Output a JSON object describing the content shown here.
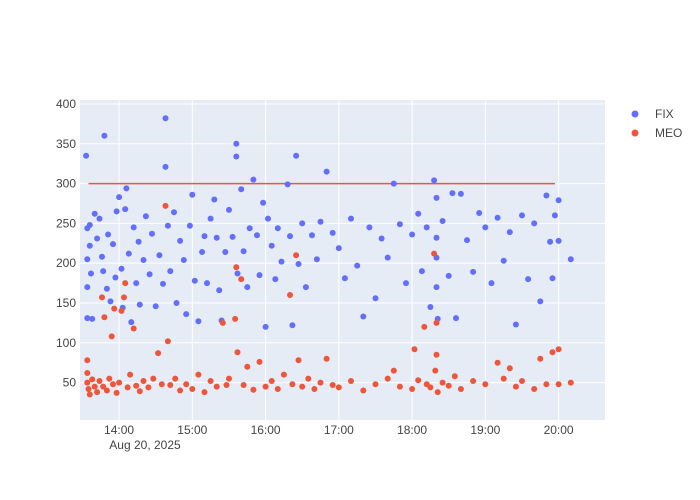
{
  "chart_data": {
    "type": "scatter",
    "x_axis": {
      "type": "time",
      "range": [
        "2025-08-20 13:28",
        "2025-08-20 20:38"
      ],
      "ticks": [
        "14:00",
        "15:00",
        "16:00",
        "17:00",
        "18:00",
        "19:00",
        "20:00"
      ],
      "tick_times": [
        "2025-08-20 14:00",
        "2025-08-20 15:00",
        "2025-08-20 16:00",
        "2025-08-20 17:00",
        "2025-08-20 18:00",
        "2025-08-20 19:00",
        "2025-08-20 20:00"
      ],
      "date_label": "Aug 20, 2025"
    },
    "y_axis": {
      "range": [
        3,
        405
      ],
      "ticks": [
        50,
        100,
        150,
        200,
        250,
        300,
        350,
        400
      ]
    },
    "grid": true,
    "legend_position": "top-right",
    "threshold_line": {
      "value": 300,
      "x_start": "2025-08-20 13:35",
      "x_end": "2025-08-20 19:57",
      "color": "#EF553B"
    },
    "series": [
      {
        "name": "FIX",
        "color": "#636EFA",
        "points": [
          [
            "2025-08-20 13:33",
            335
          ],
          [
            "2025-08-20 13:34",
            244
          ],
          [
            "2025-08-20 13:34",
            205
          ],
          [
            "2025-08-20 13:34",
            170
          ],
          [
            "2025-08-20 13:34",
            131
          ],
          [
            "2025-08-20 13:36",
            248
          ],
          [
            "2025-08-20 13:36",
            222
          ],
          [
            "2025-08-20 13:37",
            187
          ],
          [
            "2025-08-20 13:38",
            130
          ],
          [
            "2025-08-20 13:40",
            262
          ],
          [
            "2025-08-20 13:42",
            231
          ],
          [
            "2025-08-20 13:44",
            256
          ],
          [
            "2025-08-20 13:46",
            208
          ],
          [
            "2025-08-20 13:47",
            190
          ],
          [
            "2025-08-20 13:48",
            360
          ],
          [
            "2025-08-20 13:50",
            168
          ],
          [
            "2025-08-20 13:51",
            236
          ],
          [
            "2025-08-20 13:53",
            152
          ],
          [
            "2025-08-20 13:55",
            224
          ],
          [
            "2025-08-20 13:57",
            182
          ],
          [
            "2025-08-20 13:58",
            265
          ],
          [
            "2025-08-20 14:00",
            283
          ],
          [
            "2025-08-20 14:02",
            193
          ],
          [
            "2025-08-20 14:03",
            144
          ],
          [
            "2025-08-20 14:05",
            268
          ],
          [
            "2025-08-20 14:06",
            294
          ],
          [
            "2025-08-20 14:08",
            212
          ],
          [
            "2025-08-20 14:10",
            126
          ],
          [
            "2025-08-20 14:12",
            245
          ],
          [
            "2025-08-20 14:14",
            175
          ],
          [
            "2025-08-20 14:16",
            227
          ],
          [
            "2025-08-20 14:17",
            148
          ],
          [
            "2025-08-20 14:20",
            204
          ],
          [
            "2025-08-20 14:22",
            259
          ],
          [
            "2025-08-20 14:25",
            186
          ],
          [
            "2025-08-20 14:27",
            237
          ],
          [
            "2025-08-20 14:30",
            146
          ],
          [
            "2025-08-20 14:33",
            210
          ],
          [
            "2025-08-20 14:36",
            174
          ],
          [
            "2025-08-20 14:38",
            382
          ],
          [
            "2025-08-20 14:38",
            321
          ],
          [
            "2025-08-20 14:40",
            247
          ],
          [
            "2025-08-20 14:42",
            190
          ],
          [
            "2025-08-20 14:45",
            264
          ],
          [
            "2025-08-20 14:47",
            150
          ],
          [
            "2025-08-20 14:50",
            228
          ],
          [
            "2025-08-20 14:53",
            204
          ],
          [
            "2025-08-20 14:55",
            136
          ],
          [
            "2025-08-20 14:58",
            247
          ],
          [
            "2025-08-20 15:00",
            286
          ],
          [
            "2025-08-20 15:02",
            178
          ],
          [
            "2025-08-20 15:05",
            127
          ],
          [
            "2025-08-20 15:08",
            214
          ],
          [
            "2025-08-20 15:10",
            234
          ],
          [
            "2025-08-20 15:12",
            175
          ],
          [
            "2025-08-20 15:15",
            256
          ],
          [
            "2025-08-20 15:18",
            280
          ],
          [
            "2025-08-20 15:20",
            232
          ],
          [
            "2025-08-20 15:22",
            166
          ],
          [
            "2025-08-20 15:24",
            128
          ],
          [
            "2025-08-20 15:27",
            214
          ],
          [
            "2025-08-20 15:30",
            267
          ],
          [
            "2025-08-20 15:33",
            233
          ],
          [
            "2025-08-20 15:36",
            350
          ],
          [
            "2025-08-20 15:36",
            334
          ],
          [
            "2025-08-20 15:37",
            187
          ],
          [
            "2025-08-20 15:40",
            293
          ],
          [
            "2025-08-20 15:42",
            215
          ],
          [
            "2025-08-20 15:45",
            170
          ],
          [
            "2025-08-20 15:47",
            244
          ],
          [
            "2025-08-20 15:50",
            305
          ],
          [
            "2025-08-20 15:53",
            235
          ],
          [
            "2025-08-20 15:55",
            185
          ],
          [
            "2025-08-20 15:58",
            276
          ],
          [
            "2025-08-20 16:00",
            120
          ],
          [
            "2025-08-20 16:02",
            256
          ],
          [
            "2025-08-20 16:05",
            222
          ],
          [
            "2025-08-20 16:08",
            180
          ],
          [
            "2025-08-20 16:10",
            244
          ],
          [
            "2025-08-20 16:13",
            202
          ],
          [
            "2025-08-20 16:18",
            299
          ],
          [
            "2025-08-20 16:20",
            234
          ],
          [
            "2025-08-20 16:22",
            122
          ],
          [
            "2025-08-20 16:25",
            335
          ],
          [
            "2025-08-20 16:27",
            199
          ],
          [
            "2025-08-20 16:30",
            250
          ],
          [
            "2025-08-20 16:33",
            170
          ],
          [
            "2025-08-20 16:38",
            235
          ],
          [
            "2025-08-20 16:42",
            205
          ],
          [
            "2025-08-20 16:45",
            252
          ],
          [
            "2025-08-20 16:50",
            315
          ],
          [
            "2025-08-20 16:55",
            238
          ],
          [
            "2025-08-20 17:00",
            219
          ],
          [
            "2025-08-20 17:05",
            181
          ],
          [
            "2025-08-20 17:10",
            256
          ],
          [
            "2025-08-20 17:15",
            197
          ],
          [
            "2025-08-20 17:20",
            133
          ],
          [
            "2025-08-20 17:25",
            245
          ],
          [
            "2025-08-20 17:30",
            156
          ],
          [
            "2025-08-20 17:35",
            231
          ],
          [
            "2025-08-20 17:40",
            207
          ],
          [
            "2025-08-20 17:45",
            300
          ],
          [
            "2025-08-20 17:50",
            249
          ],
          [
            "2025-08-20 17:55",
            175
          ],
          [
            "2025-08-20 18:00",
            236
          ],
          [
            "2025-08-20 18:05",
            262
          ],
          [
            "2025-08-20 18:08",
            190
          ],
          [
            "2025-08-20 18:12",
            245
          ],
          [
            "2025-08-20 18:15",
            145
          ],
          [
            "2025-08-20 18:18",
            304
          ],
          [
            "2025-08-20 18:20",
            282
          ],
          [
            "2025-08-20 18:20",
            232
          ],
          [
            "2025-08-20 18:20",
            207
          ],
          [
            "2025-08-20 18:20",
            170
          ],
          [
            "2025-08-20 18:21",
            130
          ],
          [
            "2025-08-20 18:25",
            253
          ],
          [
            "2025-08-20 18:30",
            184
          ],
          [
            "2025-08-20 18:33",
            288
          ],
          [
            "2025-08-20 18:36",
            131
          ],
          [
            "2025-08-20 18:40",
            287
          ],
          [
            "2025-08-20 18:45",
            229
          ],
          [
            "2025-08-20 18:50",
            189
          ],
          [
            "2025-08-20 18:55",
            263
          ],
          [
            "2025-08-20 19:00",
            245
          ],
          [
            "2025-08-20 19:05",
            175
          ],
          [
            "2025-08-20 19:10",
            257
          ],
          [
            "2025-08-20 19:15",
            203
          ],
          [
            "2025-08-20 19:20",
            239
          ],
          [
            "2025-08-20 19:25",
            123
          ],
          [
            "2025-08-20 19:30",
            260
          ],
          [
            "2025-08-20 19:35",
            180
          ],
          [
            "2025-08-20 19:40",
            250
          ],
          [
            "2025-08-20 19:45",
            152
          ],
          [
            "2025-08-20 19:50",
            285
          ],
          [
            "2025-08-20 19:53",
            227
          ],
          [
            "2025-08-20 19:55",
            181
          ],
          [
            "2025-08-20 19:57",
            260
          ],
          [
            "2025-08-20 20:00",
            279
          ],
          [
            "2025-08-20 20:00",
            228
          ],
          [
            "2025-08-20 20:10",
            205
          ]
        ]
      },
      {
        "name": "MEO",
        "color": "#EF553B",
        "points": [
          [
            "2025-08-20 13:34",
            78
          ],
          [
            "2025-08-20 13:34",
            62
          ],
          [
            "2025-08-20 13:34",
            50
          ],
          [
            "2025-08-20 13:35",
            42
          ],
          [
            "2025-08-20 13:36",
            35
          ],
          [
            "2025-08-20 13:38",
            54
          ],
          [
            "2025-08-20 13:40",
            45
          ],
          [
            "2025-08-20 13:42",
            38
          ],
          [
            "2025-08-20 13:44",
            52
          ],
          [
            "2025-08-20 13:46",
            157
          ],
          [
            "2025-08-20 13:47",
            45
          ],
          [
            "2025-08-20 13:48",
            132
          ],
          [
            "2025-08-20 13:50",
            40
          ],
          [
            "2025-08-20 13:52",
            55
          ],
          [
            "2025-08-20 13:54",
            108
          ],
          [
            "2025-08-20 13:55",
            48
          ],
          [
            "2025-08-20 13:56",
            143
          ],
          [
            "2025-08-20 13:58",
            37
          ],
          [
            "2025-08-20 14:00",
            50
          ],
          [
            "2025-08-20 14:02",
            140
          ],
          [
            "2025-08-20 14:04",
            157
          ],
          [
            "2025-08-20 14:05",
            175
          ],
          [
            "2025-08-20 14:07",
            44
          ],
          [
            "2025-08-20 14:09",
            60
          ],
          [
            "2025-08-20 14:12",
            118
          ],
          [
            "2025-08-20 14:14",
            46
          ],
          [
            "2025-08-20 14:17",
            39
          ],
          [
            "2025-08-20 14:20",
            52
          ],
          [
            "2025-08-20 14:24",
            44
          ],
          [
            "2025-08-20 14:28",
            55
          ],
          [
            "2025-08-20 14:32",
            87
          ],
          [
            "2025-08-20 14:35",
            48
          ],
          [
            "2025-08-20 14:38",
            272
          ],
          [
            "2025-08-20 14:40",
            102
          ],
          [
            "2025-08-20 14:42",
            47
          ],
          [
            "2025-08-20 14:46",
            55
          ],
          [
            "2025-08-20 14:50",
            40
          ],
          [
            "2025-08-20 14:55",
            48
          ],
          [
            "2025-08-20 15:00",
            42
          ],
          [
            "2025-08-20 15:05",
            60
          ],
          [
            "2025-08-20 15:10",
            38
          ],
          [
            "2025-08-20 15:15",
            52
          ],
          [
            "2025-08-20 15:20",
            45
          ],
          [
            "2025-08-20 15:25",
            125
          ],
          [
            "2025-08-20 15:28",
            47
          ],
          [
            "2025-08-20 15:30",
            55
          ],
          [
            "2025-08-20 15:35",
            130
          ],
          [
            "2025-08-20 15:36",
            195
          ],
          [
            "2025-08-20 15:37",
            88
          ],
          [
            "2025-08-20 15:40",
            180
          ],
          [
            "2025-08-20 15:42",
            47
          ],
          [
            "2025-08-20 15:45",
            70
          ],
          [
            "2025-08-20 15:50",
            41
          ],
          [
            "2025-08-20 15:55",
            76
          ],
          [
            "2025-08-20 16:00",
            45
          ],
          [
            "2025-08-20 16:05",
            52
          ],
          [
            "2025-08-20 16:10",
            42
          ],
          [
            "2025-08-20 16:15",
            60
          ],
          [
            "2025-08-20 16:20",
            160
          ],
          [
            "2025-08-20 16:22",
            48
          ],
          [
            "2025-08-20 16:25",
            210
          ],
          [
            "2025-08-20 16:27",
            78
          ],
          [
            "2025-08-20 16:30",
            45
          ],
          [
            "2025-08-20 16:35",
            55
          ],
          [
            "2025-08-20 16:40",
            42
          ],
          [
            "2025-08-20 16:45",
            50
          ],
          [
            "2025-08-20 16:50",
            80
          ],
          [
            "2025-08-20 16:55",
            47
          ],
          [
            "2025-08-20 17:00",
            44
          ],
          [
            "2025-08-20 17:10",
            52
          ],
          [
            "2025-08-20 17:20",
            40
          ],
          [
            "2025-08-20 17:30",
            48
          ],
          [
            "2025-08-20 17:40",
            55
          ],
          [
            "2025-08-20 17:45",
            65
          ],
          [
            "2025-08-20 17:50",
            45
          ],
          [
            "2025-08-20 18:00",
            42
          ],
          [
            "2025-08-20 18:02",
            92
          ],
          [
            "2025-08-20 18:05",
            53
          ],
          [
            "2025-08-20 18:10",
            120
          ],
          [
            "2025-08-20 18:12",
            48
          ],
          [
            "2025-08-20 18:15",
            44
          ],
          [
            "2025-08-20 18:18",
            212
          ],
          [
            "2025-08-20 18:19",
            65
          ],
          [
            "2025-08-20 18:20",
            125
          ],
          [
            "2025-08-20 18:20",
            85
          ],
          [
            "2025-08-20 18:21",
            38
          ],
          [
            "2025-08-20 18:25",
            50
          ],
          [
            "2025-08-20 18:30",
            46
          ],
          [
            "2025-08-20 18:35",
            58
          ],
          [
            "2025-08-20 18:40",
            42
          ],
          [
            "2025-08-20 18:50",
            52
          ],
          [
            "2025-08-20 19:00",
            48
          ],
          [
            "2025-08-20 19:10",
            75
          ],
          [
            "2025-08-20 19:15",
            55
          ],
          [
            "2025-08-20 19:20",
            68
          ],
          [
            "2025-08-20 19:25",
            45
          ],
          [
            "2025-08-20 19:30",
            52
          ],
          [
            "2025-08-20 19:40",
            42
          ],
          [
            "2025-08-20 19:45",
            80
          ],
          [
            "2025-08-20 19:50",
            48
          ],
          [
            "2025-08-20 19:55",
            88
          ],
          [
            "2025-08-20 20:00",
            92
          ],
          [
            "2025-08-20 20:00",
            48
          ],
          [
            "2025-08-20 20:10",
            50
          ]
        ]
      }
    ]
  }
}
